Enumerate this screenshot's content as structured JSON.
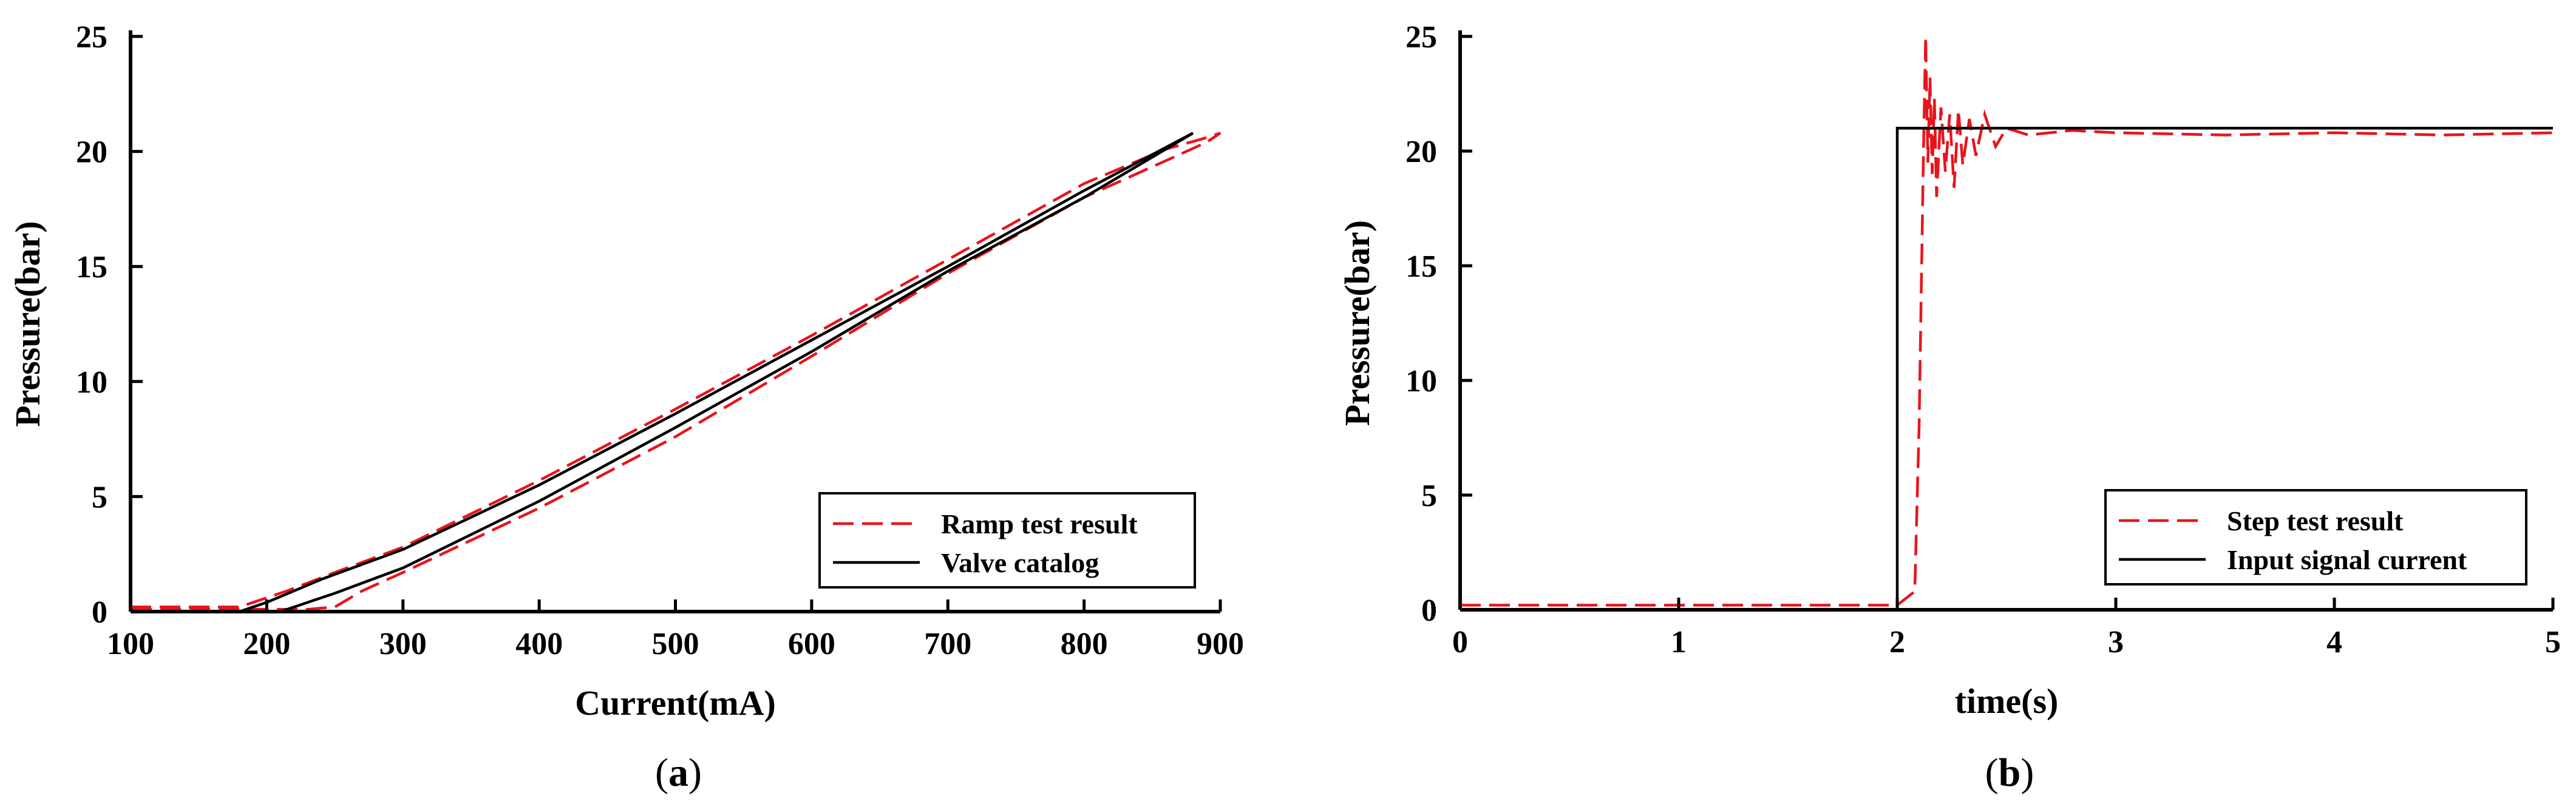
{
  "chart_data": [
    {
      "type": "line",
      "panel_label": "a",
      "xlabel": "Current(mA)",
      "ylabel": "Pressure(bar)",
      "xlim": [
        100,
        900
      ],
      "ylim": [
        0,
        25
      ],
      "xticks": [
        100,
        200,
        300,
        400,
        500,
        600,
        700,
        800,
        900
      ],
      "yticks": [
        0,
        5,
        10,
        15,
        20,
        25
      ],
      "grid": false,
      "legend_position": "bottom-right",
      "series": [
        {
          "name": "Ramp test result",
          "style": "dashed",
          "color": "#e8141c",
          "x": [
            100,
            180,
            195,
            215,
            250,
            300,
            400,
            500,
            600,
            700,
            800,
            860,
            890,
            900,
            890,
            860,
            800,
            700,
            600,
            500,
            400,
            300,
            270,
            250,
            230,
            200,
            150,
            100
          ],
          "y": [
            0.2,
            0.2,
            0.5,
            0.9,
            1.7,
            2.8,
            5.7,
            8.8,
            12.0,
            15.3,
            18.6,
            20.1,
            20.6,
            20.8,
            20.4,
            19.6,
            18.0,
            14.7,
            11.1,
            7.6,
            4.5,
            1.7,
            0.9,
            0.2,
            0.1,
            0.1,
            0.1,
            0.1
          ]
        },
        {
          "name": "Valve catalog",
          "style": "solid",
          "color": "#000000",
          "x": [
            180,
            200,
            240,
            300,
            400,
            500,
            600,
            700,
            800,
            880,
            800,
            700,
            600,
            500,
            400,
            300,
            250,
            210
          ],
          "y": [
            0,
            0.4,
            1.4,
            2.7,
            5.5,
            8.6,
            11.8,
            15.0,
            18.3,
            20.8,
            18.0,
            14.8,
            11.3,
            8.0,
            4.8,
            1.9,
            0.8,
            0
          ]
        }
      ]
    },
    {
      "type": "line",
      "panel_label": "b",
      "xlabel": "time(s)",
      "ylabel": "Pressure(bar)",
      "xlim": [
        0,
        5
      ],
      "ylim": [
        0,
        25
      ],
      "xticks": [
        0,
        1,
        2,
        3,
        4,
        5
      ],
      "yticks": [
        0,
        5,
        10,
        15,
        20,
        25
      ],
      "grid": false,
      "legend_position": "bottom-right",
      "series": [
        {
          "name": "Step test result",
          "style": "dashed",
          "color": "#e8141c",
          "x": [
            0,
            2.0,
            2.08,
            2.1,
            2.12,
            2.13,
            2.14,
            2.15,
            2.16,
            2.17,
            2.18,
            2.2,
            2.22,
            2.24,
            2.26,
            2.28,
            2.3,
            2.33,
            2.36,
            2.4,
            2.45,
            2.5,
            2.6,
            2.8,
            3.0,
            3.5,
            4.0,
            4.5,
            5.0
          ],
          "y": [
            0.2,
            0.2,
            0.8,
            8.0,
            20.0,
            25.0,
            19.5,
            23.2,
            19.0,
            22.3,
            18.0,
            21.9,
            19.1,
            21.6,
            18.4,
            21.8,
            19.4,
            21.4,
            19.8,
            21.6,
            20.2,
            21.0,
            20.7,
            20.9,
            20.8,
            20.7,
            20.8,
            20.7,
            20.8
          ]
        },
        {
          "name": "Input signal current",
          "style": "solid",
          "color": "#000000",
          "x": [
            0,
            2.0,
            2.0,
            5.0
          ],
          "y": [
            0,
            0,
            21.0,
            21.0
          ]
        }
      ]
    }
  ]
}
